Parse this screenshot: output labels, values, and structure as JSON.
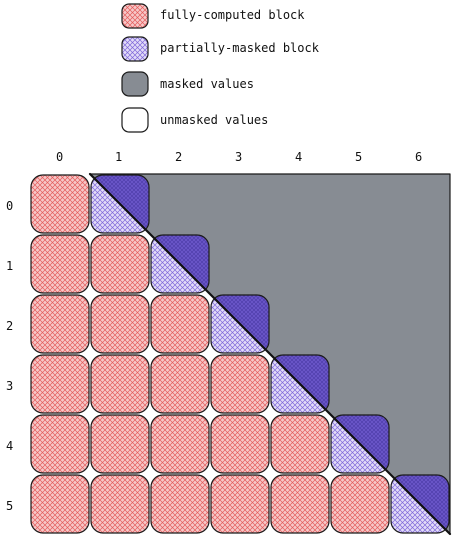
{
  "legend": {
    "full_label": "fully-computed block",
    "partial_label": "partially-masked block",
    "masked_label": "masked values",
    "unmasked_label": "unmasked values"
  },
  "columns": [
    "0",
    "1",
    "2",
    "3",
    "4",
    "5",
    "6"
  ],
  "rows": [
    "0",
    "1",
    "2",
    "3",
    "4",
    "5"
  ],
  "colors": {
    "full_fill": "#f6c3c3",
    "full_hatch": "#e45c5c",
    "partial_fill": "#d5cdf2",
    "partial_hatch": "#7f67da",
    "partial_dark": "#6a56c9",
    "masked": "#878c93",
    "outline": "#1a1a1a"
  },
  "blocks": {
    "fully_computed": "column < row + 1",
    "partially_masked": "column = row + 1"
  }
}
